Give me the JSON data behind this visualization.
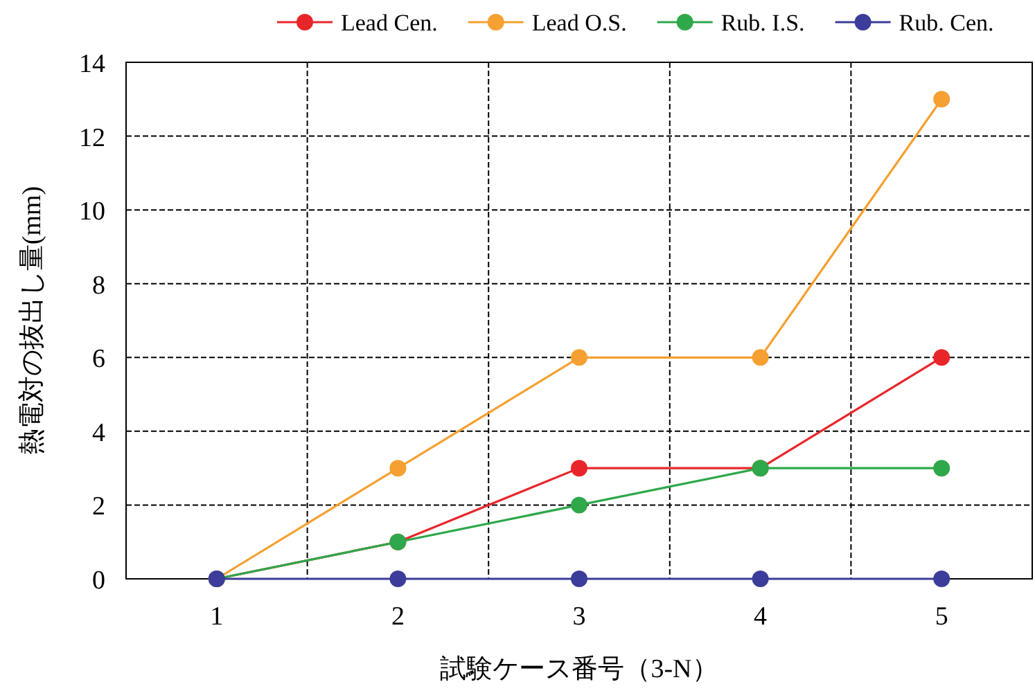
{
  "chart_data": {
    "type": "line",
    "xlabel": "試験ケース番号（3-N）",
    "ylabel": "熱電対の抜出し量(mm)",
    "categories": [
      "1",
      "2",
      "3",
      "4",
      "5"
    ],
    "series": [
      {
        "name": "Lead Cen.",
        "color": "#e8262a",
        "values": [
          0,
          1,
          3,
          3,
          6
        ]
      },
      {
        "name": "Lead O.S.",
        "color": "#f5a030",
        "values": [
          0,
          3,
          6,
          6,
          13
        ]
      },
      {
        "name": "Rub. I.S.",
        "color": "#2ea84a",
        "values": [
          0,
          1,
          2,
          3,
          3
        ]
      },
      {
        "name": "Rub. Cen.",
        "color": "#3c3c9a",
        "values": [
          0,
          0,
          0,
          0,
          0
        ]
      }
    ],
    "ylim": [
      0,
      14
    ],
    "yticks": [
      0,
      2,
      4,
      6,
      8,
      10,
      12,
      14
    ],
    "grid": true,
    "legend": "top",
    "marker": "circle"
  }
}
